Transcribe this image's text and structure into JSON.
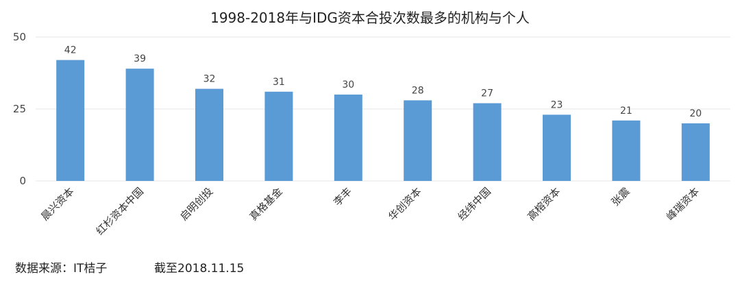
{
  "chart_data": {
    "type": "bar",
    "title": "1998-2018年与IDG资本合投次数最多的机构与个人",
    "categories": [
      "晨兴资本",
      "红杉资本中国",
      "启明创投",
      "真格基金",
      "李丰",
      "华创资本",
      "经纬中国",
      "高榕资本",
      "张震",
      "峰瑞资本"
    ],
    "values": [
      42,
      39,
      32,
      31,
      30,
      28,
      27,
      23,
      21,
      20
    ],
    "ylim": [
      0,
      50
    ],
    "yticks": [
      0,
      25,
      50
    ],
    "xlabel": "",
    "ylabel": "",
    "grid": true,
    "bar_color": "#5b9bd5",
    "grid_color": "#e6e6e6",
    "data_labels": true
  },
  "footer": {
    "source": "数据来源：IT桔子",
    "date": "截至2018.11.15"
  }
}
